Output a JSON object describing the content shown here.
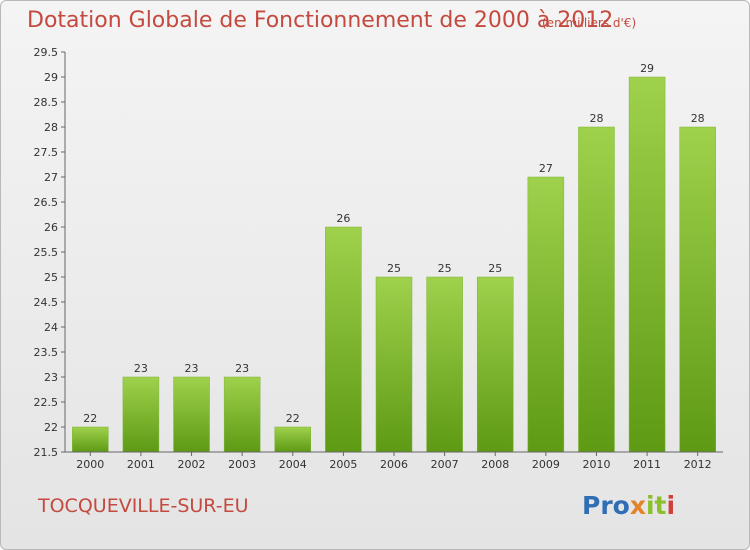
{
  "header": {
    "title": "Dotation Globale de Fonctionnement de 2000 à 2012",
    "unit": "(en milliers d'€)"
  },
  "footer": {
    "commune": "TOCQUEVILLE-SUR-EU",
    "logo_text": "Proxiti"
  },
  "colors": {
    "title": "#c44a3f",
    "bar_top": "#9fd14c",
    "bar_bottom": "#5e9a14",
    "background_top": "#f4f4f4",
    "background_bottom": "#e4e4e4"
  },
  "chart_data": {
    "type": "bar",
    "title": "Dotation Globale de Fonctionnement de 2000 à 2012",
    "xlabel": "",
    "ylabel": "",
    "categories": [
      "2000",
      "2001",
      "2002",
      "2003",
      "2004",
      "2005",
      "2006",
      "2007",
      "2008",
      "2009",
      "2010",
      "2011",
      "2012"
    ],
    "values": [
      22,
      23,
      23,
      23,
      22,
      26,
      25,
      25,
      25,
      27,
      28,
      29,
      28
    ],
    "ylim": [
      21.5,
      29.5
    ],
    "yticks": [
      "21.5",
      "22",
      "22.5",
      "23",
      "23.5",
      "24",
      "24.5",
      "25",
      "25.5",
      "26",
      "26.5",
      "27",
      "27.5",
      "28",
      "28.5",
      "29",
      "29.5"
    ],
    "grid": false,
    "legend": "none"
  }
}
